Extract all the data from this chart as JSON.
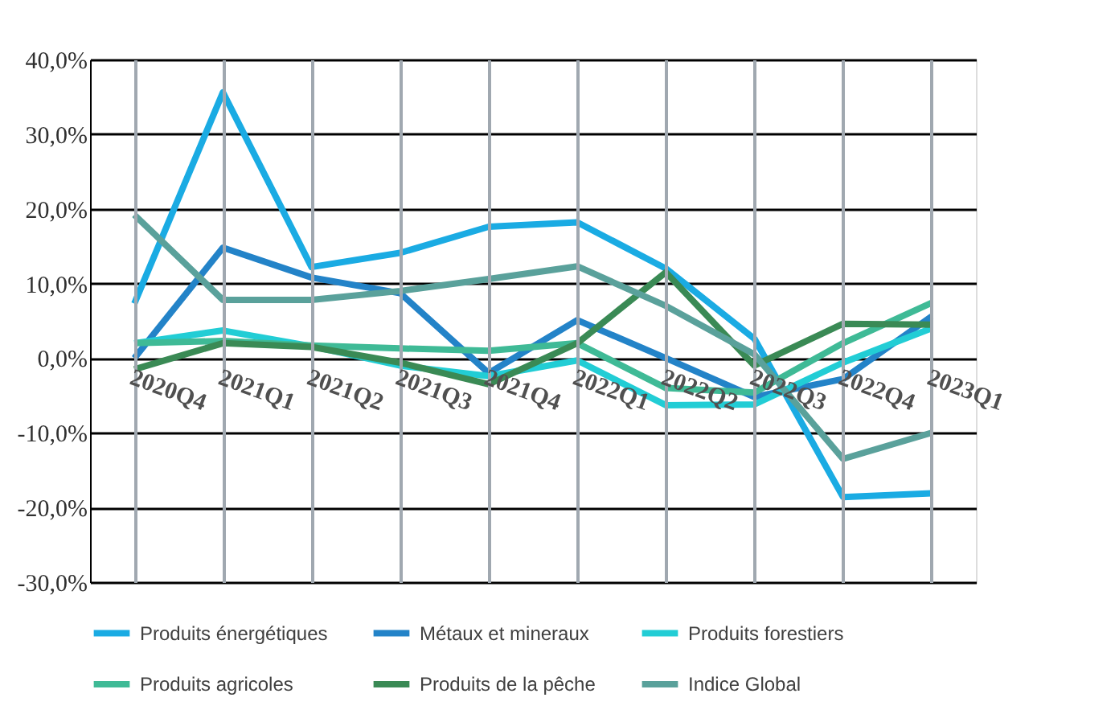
{
  "chart_data": {
    "type": "line",
    "categories": [
      "2020Q4",
      "2021Q1",
      "2021Q2",
      "2021Q3",
      "2021Q4",
      "2022Q1",
      "2022Q2",
      "2022Q3",
      "2022Q4",
      "2023Q1"
    ],
    "series": [
      {
        "name": "Produits énergétiques",
        "color": "#1aabe3",
        "values": [
          7.3,
          35.6,
          12.2,
          14.1,
          17.6,
          18.2,
          12,
          2.6,
          -18.6,
          -18.1
        ]
      },
      {
        "name": "Métaux et mineraux",
        "color": "#2383c8",
        "values": [
          0,
          14.8,
          10.8,
          8.7,
          -2,
          5.1,
          0,
          -5.2,
          -2.8,
          5.6
        ]
      },
      {
        "name": "Produits forestiers",
        "color": "#22cdd5",
        "values": [
          2,
          3.7,
          1.6,
          -1,
          -2.4,
          -0.3,
          -6.3,
          -6.2,
          -0.6,
          4
        ]
      },
      {
        "name": "Produits agricoles",
        "color": "#3fba96",
        "values": [
          2,
          2.3,
          1.7,
          1.3,
          1,
          2,
          -4,
          -4.6,
          2,
          7.4
        ]
      },
      {
        "name": "Produits de la pêche",
        "color": "#3a8a55",
        "values": [
          -1.5,
          2,
          1.5,
          -0.6,
          -3.5,
          2,
          11.5,
          -1,
          4.6,
          4.5
        ]
      },
      {
        "name": "Indice Global",
        "color": "#5aa19b",
        "values": [
          19.2,
          7.8,
          7.8,
          9,
          10.6,
          12.3,
          7,
          0.5,
          -13.5,
          -10
        ]
      }
    ],
    "ylim": [
      -30,
      40
    ],
    "yticks": [
      {
        "value": -30,
        "label": "-30,0%"
      },
      {
        "value": -20,
        "label": "-20,0%"
      },
      {
        "value": -10,
        "label": "-10,0%"
      },
      {
        "value": 0,
        "label": "0,0%"
      },
      {
        "value": 10,
        "label": "10,0%"
      },
      {
        "value": 20,
        "label": "20,0%"
      },
      {
        "value": 30,
        "label": "30,0%"
      },
      {
        "value": 40,
        "label": "40,0%"
      }
    ],
    "grid": true,
    "legend": "bottom",
    "line_style": "solid",
    "marker": "none"
  }
}
